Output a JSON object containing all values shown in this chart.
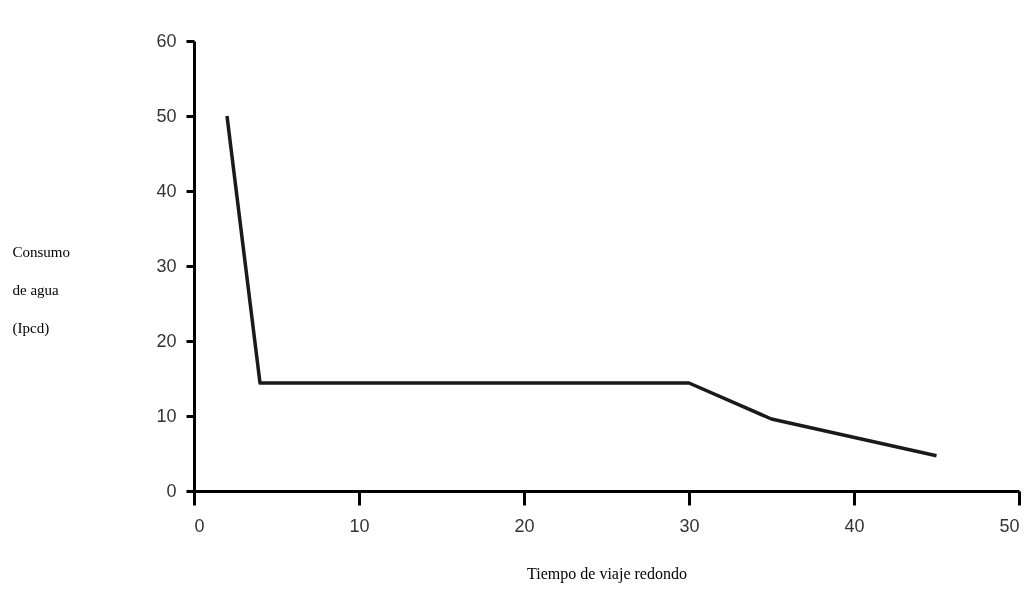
{
  "chart_data": {
    "type": "line",
    "xlabel": "Tiempo de viaje redondo",
    "ylabel": "Consumo\nde agua\n(Ipcd)",
    "x": [
      2,
      4,
      30,
      35,
      45
    ],
    "series": [
      {
        "color": "#1a1a1a",
        "values": [
          50,
          14.4,
          14.4,
          9.6,
          4.7
        ]
      }
    ],
    "xlim": [
      0,
      50
    ],
    "xticks": [
      0,
      10,
      20,
      30,
      40,
      50
    ],
    "ylim": [
      0,
      60
    ],
    "yticks": [
      0,
      10,
      20,
      30,
      40,
      50,
      60
    ],
    "grid": false,
    "legend": false,
    "marker": "none",
    "line_style": "solid"
  }
}
